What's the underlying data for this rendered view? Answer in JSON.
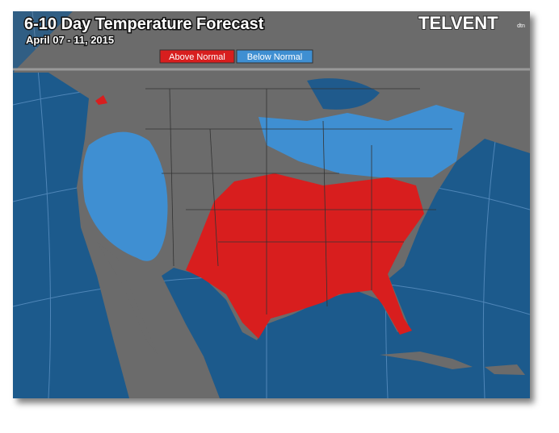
{
  "header": {
    "title": "6-10 Day Temperature Forecast",
    "subtitle": "April 07 - 11, 2015"
  },
  "legend": {
    "items": [
      "Above Normal",
      "Below Normal"
    ]
  },
  "logo": {
    "name": "TELVENT",
    "tag": "dtn"
  }
}
